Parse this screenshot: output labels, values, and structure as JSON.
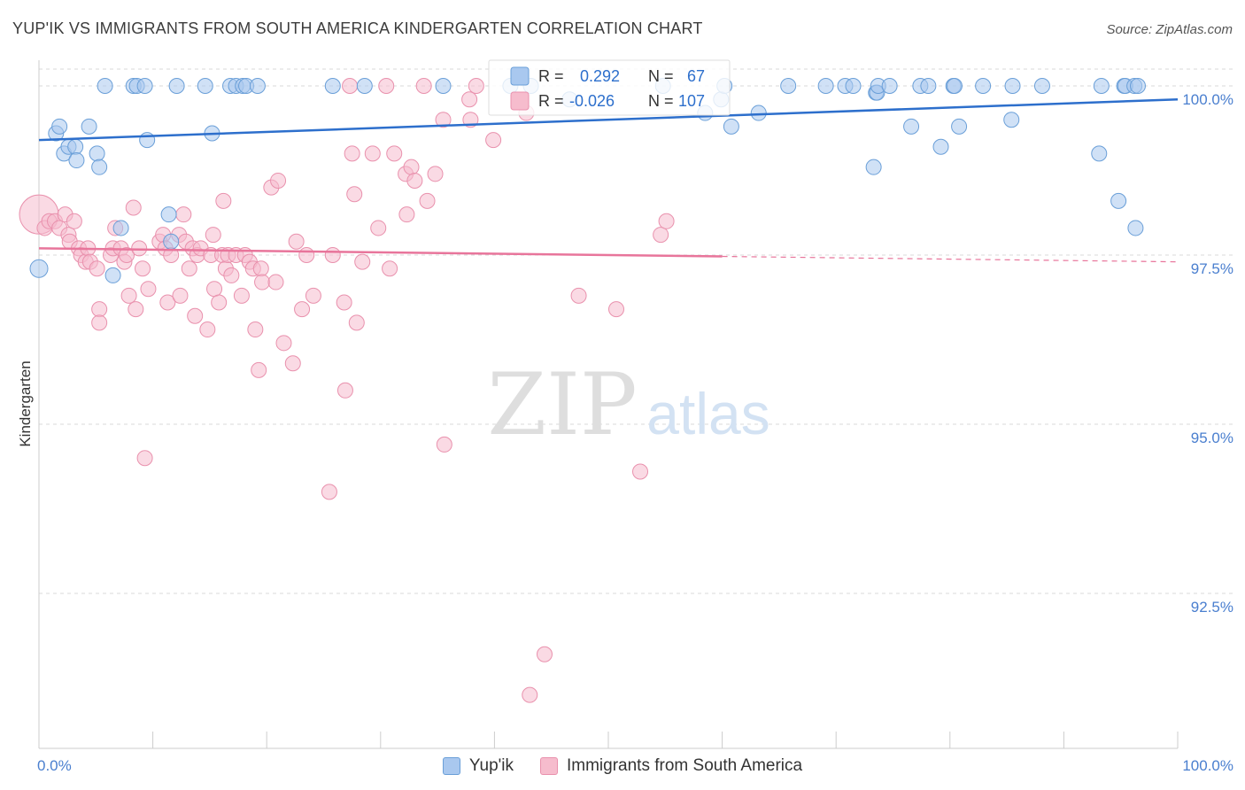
{
  "header": {
    "title": "YUP'IK VS IMMIGRANTS FROM SOUTH AMERICA KINDERGARTEN CORRELATION CHART",
    "source": "Source: ZipAtlas.com"
  },
  "watermark": {
    "zip": "ZIP",
    "atlas": "atlas"
  },
  "colors": {
    "blue_fill": "#a9c8ef",
    "blue_stroke": "#6a9fd8",
    "blue_line": "#2d6fcc",
    "pink_fill": "#f6bccd",
    "pink_stroke": "#e991ad",
    "pink_line": "#e8759b",
    "axis_label": "#4a7fcf",
    "grid": "#d9d9d9"
  },
  "stats": {
    "r_label": "R =",
    "n_label": "N =",
    "series1": {
      "r": "0.292",
      "n": "67"
    },
    "series2": {
      "r": "-0.026",
      "n": "107"
    }
  },
  "chart_data": {
    "type": "scatter",
    "title": "YUP'IK VS IMMIGRANTS FROM SOUTH AMERICA KINDERGARTEN CORRELATION CHART",
    "xlabel": "",
    "ylabel": "Kindergarten",
    "xlim": [
      0,
      100
    ],
    "ylim": [
      90.2,
      100.6
    ],
    "x_tick_labels": [
      "0.0%",
      "100.0%"
    ],
    "y_ticks": [
      92.5,
      95.0,
      97.5,
      100.0
    ],
    "y_tick_labels": [
      "92.5%",
      "95.0%",
      "97.5%",
      "100.0%"
    ],
    "legend_position": "bottom",
    "series": [
      {
        "name": "Yup'ik",
        "color": "#a9c8ef",
        "trend": {
          "x0": 0,
          "y0": 99.2,
          "x1": 100,
          "y1": 99.8,
          "dashed_from": null
        },
        "points": [
          [
            0,
            97.3
          ],
          [
            1.5,
            99.3
          ],
          [
            1.8,
            99.4
          ],
          [
            2.2,
            99.0
          ],
          [
            2.6,
            99.1
          ],
          [
            3.2,
            99.1
          ],
          [
            3.3,
            98.9
          ],
          [
            4.4,
            99.4
          ],
          [
            5.1,
            99.0
          ],
          [
            5.3,
            98.8
          ],
          [
            5.8,
            100.0
          ],
          [
            6.5,
            97.2
          ],
          [
            7.2,
            97.9
          ],
          [
            8.3,
            100.0
          ],
          [
            8.6,
            100.0
          ],
          [
            9.3,
            100.0
          ],
          [
            9.5,
            99.2
          ],
          [
            11.4,
            98.1
          ],
          [
            11.6,
            97.7
          ],
          [
            12.1,
            100.0
          ],
          [
            14.6,
            100.0
          ],
          [
            15.2,
            99.3
          ],
          [
            16.8,
            100.0
          ],
          [
            17.3,
            100.0
          ],
          [
            17.9,
            100.0
          ],
          [
            18.2,
            100.0
          ],
          [
            19.2,
            100.0
          ],
          [
            25.8,
            100.0
          ],
          [
            28.6,
            100.0
          ],
          [
            35.5,
            100.0
          ],
          [
            41.4,
            100.0
          ],
          [
            43.2,
            100.0
          ],
          [
            46.6,
            99.8
          ],
          [
            54.8,
            100.0
          ],
          [
            58.5,
            99.6
          ],
          [
            59.9,
            99.8
          ],
          [
            60.2,
            100.0
          ],
          [
            60.8,
            99.4
          ],
          [
            63.2,
            99.6
          ],
          [
            65.8,
            100.0
          ],
          [
            69.1,
            100.0
          ],
          [
            70.8,
            100.0
          ],
          [
            71.5,
            100.0
          ],
          [
            73.5,
            99.9
          ],
          [
            73.6,
            99.9
          ],
          [
            73.7,
            100.0
          ],
          [
            74.7,
            100.0
          ],
          [
            73.3,
            98.8
          ],
          [
            77.4,
            100.0
          ],
          [
            78.1,
            100.0
          ],
          [
            76.6,
            99.4
          ],
          [
            79.2,
            99.1
          ],
          [
            80.3,
            100.0
          ],
          [
            80.4,
            100.0
          ],
          [
            80.8,
            99.4
          ],
          [
            82.9,
            100.0
          ],
          [
            85.4,
            99.5
          ],
          [
            85.5,
            100.0
          ],
          [
            88.1,
            100.0
          ],
          [
            93.1,
            99.0
          ],
          [
            93.3,
            100.0
          ],
          [
            95.3,
            100.0
          ],
          [
            95.4,
            100.0
          ],
          [
            94.8,
            98.3
          ],
          [
            96.2,
            100.0
          ],
          [
            96.5,
            100.0
          ],
          [
            96.3,
            97.9
          ]
        ]
      },
      {
        "name": "Immigrants from South America",
        "color": "#f6bccd",
        "trend": {
          "x0": 0,
          "y0": 97.6,
          "x1": 100,
          "y1": 97.4,
          "dashed_from": 60
        },
        "points": [
          [
            0,
            98.1
          ],
          [
            0.5,
            97.9
          ],
          [
            0.9,
            98.0
          ],
          [
            1.4,
            98.0
          ],
          [
            1.8,
            97.9
          ],
          [
            2.3,
            98.1
          ],
          [
            2.6,
            97.8
          ],
          [
            2.7,
            97.7
          ],
          [
            3.1,
            98.0
          ],
          [
            3.5,
            97.6
          ],
          [
            3.7,
            97.5
          ],
          [
            4.1,
            97.4
          ],
          [
            4.3,
            97.6
          ],
          [
            4.5,
            97.4
          ],
          [
            5.1,
            97.3
          ],
          [
            5.3,
            96.7
          ],
          [
            5.3,
            96.5
          ],
          [
            6.3,
            97.5
          ],
          [
            6.5,
            97.6
          ],
          [
            6.7,
            97.9
          ],
          [
            7.2,
            97.6
          ],
          [
            7.5,
            97.4
          ],
          [
            7.7,
            97.5
          ],
          [
            7.9,
            96.9
          ],
          [
            8.3,
            98.2
          ],
          [
            8.5,
            96.7
          ],
          [
            8.8,
            97.6
          ],
          [
            9.1,
            97.3
          ],
          [
            9.3,
            94.5
          ],
          [
            9.6,
            97.0
          ],
          [
            10.6,
            97.7
          ],
          [
            10.9,
            97.8
          ],
          [
            11.1,
            97.6
          ],
          [
            11.3,
            96.8
          ],
          [
            11.6,
            97.5
          ],
          [
            12.3,
            97.8
          ],
          [
            12.4,
            96.9
          ],
          [
            12.7,
            98.1
          ],
          [
            12.9,
            97.7
          ],
          [
            13.2,
            97.3
          ],
          [
            13.5,
            97.6
          ],
          [
            13.7,
            96.6
          ],
          [
            13.9,
            97.5
          ],
          [
            14.2,
            97.6
          ],
          [
            14.8,
            96.4
          ],
          [
            15.1,
            97.5
          ],
          [
            15.3,
            97.8
          ],
          [
            15.4,
            97.0
          ],
          [
            15.8,
            96.8
          ],
          [
            16.1,
            97.5
          ],
          [
            16.2,
            98.3
          ],
          [
            16.4,
            97.3
          ],
          [
            16.6,
            97.5
          ],
          [
            16.9,
            97.2
          ],
          [
            17.3,
            97.5
          ],
          [
            17.8,
            96.9
          ],
          [
            18.1,
            97.5
          ],
          [
            18.5,
            97.4
          ],
          [
            18.8,
            97.3
          ],
          [
            19.0,
            96.4
          ],
          [
            19.3,
            95.8
          ],
          [
            19.5,
            97.3
          ],
          [
            19.6,
            97.1
          ],
          [
            20.4,
            98.5
          ],
          [
            20.8,
            97.1
          ],
          [
            21.0,
            98.6
          ],
          [
            21.5,
            96.2
          ],
          [
            22.3,
            95.9
          ],
          [
            22.6,
            97.7
          ],
          [
            23.1,
            96.7
          ],
          [
            23.5,
            97.5
          ],
          [
            24.1,
            96.9
          ],
          [
            25.5,
            94.0
          ],
          [
            25.8,
            97.5
          ],
          [
            26.9,
            95.5
          ],
          [
            26.8,
            96.8
          ],
          [
            27.3,
            100.0
          ],
          [
            27.5,
            99.0
          ],
          [
            27.7,
            98.4
          ],
          [
            27.9,
            96.5
          ],
          [
            28.4,
            97.4
          ],
          [
            29.3,
            99.0
          ],
          [
            29.8,
            97.9
          ],
          [
            30.5,
            100.0
          ],
          [
            30.8,
            97.3
          ],
          [
            31.2,
            99.0
          ],
          [
            32.2,
            98.7
          ],
          [
            32.3,
            98.1
          ],
          [
            32.7,
            98.8
          ],
          [
            33.0,
            98.6
          ],
          [
            33.8,
            100.0
          ],
          [
            34.1,
            98.3
          ],
          [
            34.8,
            98.7
          ],
          [
            35.5,
            99.5
          ],
          [
            35.6,
            94.7
          ],
          [
            37.8,
            99.8
          ],
          [
            37.9,
            99.5
          ],
          [
            38.4,
            100.0
          ],
          [
            39.9,
            99.2
          ],
          [
            43.1,
            91.0
          ],
          [
            42.8,
            99.6
          ],
          [
            44.4,
            91.6
          ],
          [
            47.4,
            96.9
          ],
          [
            50.7,
            96.7
          ],
          [
            52.8,
            94.3
          ],
          [
            54.6,
            97.8
          ],
          [
            55.1,
            98.0
          ]
        ]
      }
    ]
  }
}
